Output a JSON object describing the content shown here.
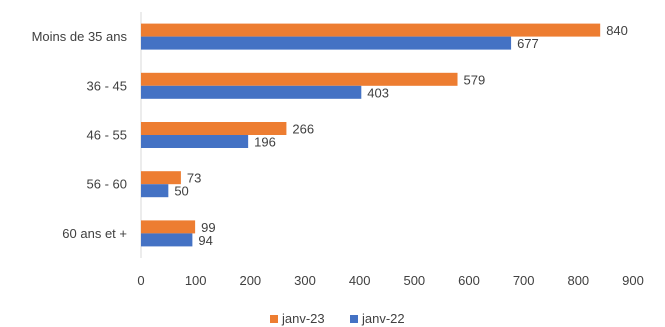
{
  "chart_data": {
    "type": "bar",
    "orientation": "horizontal",
    "categories": [
      "Moins de 35 ans",
      "36 - 45",
      "46 - 55",
      "56 - 60",
      "60 ans et +"
    ],
    "series": [
      {
        "name": "janv-23",
        "color": "#ED7D31",
        "values": [
          840,
          579,
          266,
          73,
          99
        ]
      },
      {
        "name": "janv-22",
        "color": "#4472C4",
        "values": [
          677,
          403,
          196,
          50,
          94
        ]
      }
    ],
    "xlim": [
      0,
      900
    ],
    "xticks": [
      0,
      100,
      200,
      300,
      400,
      500,
      600,
      700,
      800,
      900
    ],
    "xtick_labels": [
      "0",
      "100",
      "200",
      "300",
      "400",
      "500",
      "600",
      "700",
      "800",
      "900"
    ],
    "grid": false,
    "legend_position": "bottom",
    "title": "",
    "xlabel": "",
    "ylabel": ""
  }
}
